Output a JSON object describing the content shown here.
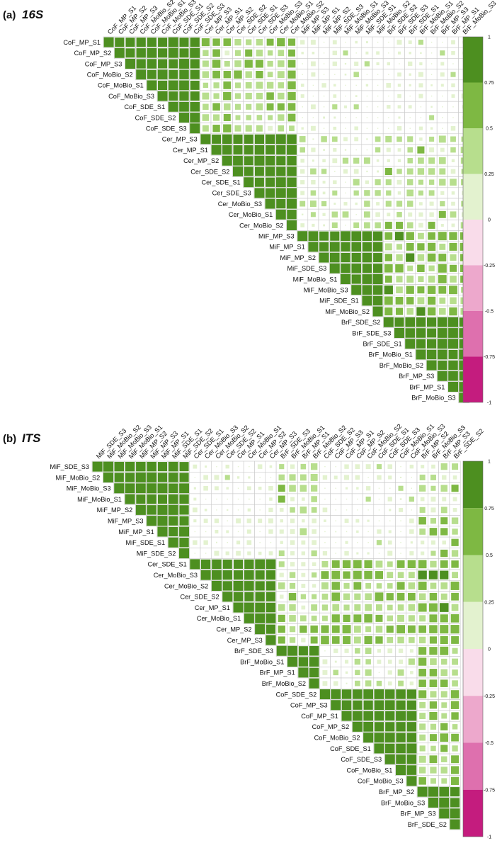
{
  "colors": {
    "scale": [
      {
        "lo": 0.75,
        "hi": 1.0,
        "color": "#4d8f20"
      },
      {
        "lo": 0.5,
        "hi": 0.75,
        "color": "#7eb843"
      },
      {
        "lo": 0.25,
        "hi": 0.5,
        "color": "#b7de8d"
      },
      {
        "lo": 0.0,
        "hi": 0.25,
        "color": "#e3f2cf"
      },
      {
        "lo": -0.25,
        "hi": 0.0,
        "color": "#f9dcea"
      },
      {
        "lo": -0.5,
        "hi": -0.25,
        "color": "#eda8cc"
      },
      {
        "lo": -0.75,
        "hi": -0.5,
        "color": "#de70ae"
      },
      {
        "lo": -1.0,
        "hi": -0.75,
        "color": "#c41c7e"
      }
    ],
    "grid": "#c9c9c9",
    "label": "#111111"
  },
  "chart_data": [
    {
      "panel": "(a)",
      "title": "16S",
      "type": "heatmap",
      "style": "upper-triangle correlation matrix, square size proportional to correlation",
      "labels": [
        "CoF_MP_S1",
        "CoF_MP_S2",
        "CoF_MP_S3",
        "CoF_MoBio_S2",
        "CoF_MoBio_S1",
        "CoF_MoBio_S3",
        "CoF_SDE_S1",
        "CoF_SDE_S2",
        "CoF_SDE_S3",
        "Cer_MP_S3",
        "Cer_MP_S1",
        "Cer_MP_S2",
        "Cer_SDE_S2",
        "Cer_SDE_S1",
        "Cer_SDE_S3",
        "Cer_MoBio_S3",
        "Cer_MoBio_S1",
        "Cer_MoBio_S2",
        "MiF_MP_S3",
        "MiF_MP_S1",
        "MiF_MP_S2",
        "MiF_SDE_S3",
        "MiF_MoBio_S1",
        "MiF_MoBio_S3",
        "MiF_SDE_S1",
        "MiF_MoBio_S2",
        "BrF_SDE_S2",
        "BrF_SDE_S3",
        "BrF_SDE_S1",
        "BrF_MoBio_S1",
        "BrF_MoBio_S2",
        "BrF_MP_S3",
        "BrF_MP_S1",
        "BrF_MoBio_S3"
      ],
      "groups": [
        [
          0,
          8
        ],
        [
          9,
          17
        ],
        [
          18,
          25
        ],
        [
          26,
          33
        ]
      ],
      "between": [
        [
          null,
          0.45,
          0.08,
          0.05
        ],
        [
          0.45,
          null,
          0.2,
          0.3
        ],
        [
          0.08,
          0.2,
          null,
          0.55
        ],
        [
          0.05,
          0.3,
          0.55,
          null
        ]
      ],
      "colorbar_ticks": [
        "1",
        "0.75",
        "0.5",
        "0.25",
        "0",
        "-0.25",
        "-0.5",
        "-0.75",
        "-1"
      ],
      "value_range": [
        -1,
        1
      ]
    },
    {
      "panel": "(b)",
      "title": "ITS",
      "type": "heatmap",
      "style": "upper-triangle correlation matrix, square size proportional to correlation",
      "labels": [
        "MiF_SDE_S3",
        "MiF_MoBio_S2",
        "MiF_MoBio_S3",
        "MiF_MoBio_S1",
        "MiF_MP_S2",
        "MiF_MP_S3",
        "MiF_MP_S1",
        "MiF_SDE_S1",
        "MiF_SDE_S2",
        "Cer_SDE_S1",
        "Cer_MoBio_S3",
        "Cer_MoBio_S2",
        "Cer_SDE_S2",
        "Cer_MP_S1",
        "Cer_MoBio_S1",
        "Cer_MP_S2",
        "Cer_MP_S3",
        "BrF_SDE_S3",
        "BrF_MoBio_S1",
        "BrF_MP_S1",
        "BrF_MoBio_S2",
        "CoF_SDE_S2",
        "CoF_MP_S3",
        "CoF_MP_S1",
        "CoF_MP_S2",
        "CoF_MoBio_S2",
        "CoF_SDE_S1",
        "CoF_SDE_S3",
        "CoF_MoBio_S1",
        "CoF_MoBio_S3",
        "BrF_MP_S2",
        "BrF_MoBio_S3",
        "BrF_MP_S3",
        "BrF_SDE_S2"
      ],
      "groups": [
        [
          0,
          8
        ],
        [
          9,
          16
        ],
        [
          17,
          20
        ],
        [
          21,
          29
        ],
        [
          30,
          33
        ]
      ],
      "between": [
        [
          null,
          0.05,
          0.3,
          0.05,
          0.35
        ],
        [
          0.05,
          null,
          0.35,
          0.5,
          0.6
        ],
        [
          0.3,
          0.35,
          null,
          0.2,
          0.5
        ],
        [
          0.05,
          0.5,
          0.2,
          null,
          0.5
        ],
        [
          0.35,
          0.6,
          0.5,
          0.5,
          null
        ]
      ],
      "colorbar_ticks": [
        "1",
        "0.75",
        "0.5",
        "0.25",
        "0",
        "-0.25",
        "-0.5",
        "-0.75",
        "-1"
      ],
      "value_range": [
        -1,
        1
      ]
    }
  ]
}
